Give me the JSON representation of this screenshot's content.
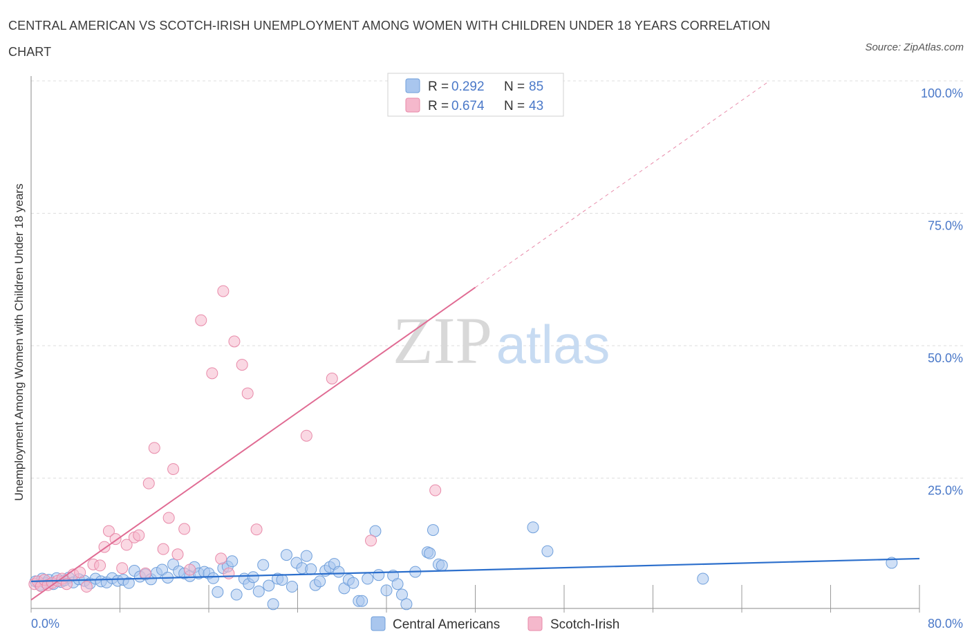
{
  "title": "CENTRAL AMERICAN VS SCOTCH-IRISH UNEMPLOYMENT AMONG WOMEN WITH CHILDREN UNDER 18 YEARS CORRELATION CHART",
  "source": "Source: ZipAtlas.com",
  "watermark": {
    "zip": "ZIP",
    "atlas": "atlas"
  },
  "colors": {
    "blue_fill": "#a9c6ee",
    "blue_stroke": "#6f9fdb",
    "blue_line": "#2c6fcc",
    "pink_fill": "#f5b8cc",
    "pink_stroke": "#e88aa9",
    "pink_line": "#e06b93",
    "tick_text": "#4a78c8",
    "grid": "#dddddd"
  },
  "legend": {
    "series": [
      {
        "r_label": "R = ",
        "r_value": "0.292",
        "n_label": "N = ",
        "n_value": "85"
      },
      {
        "r_label": "R = ",
        "r_value": "0.674",
        "n_label": "N = ",
        "n_value": "43"
      }
    ]
  },
  "chart_data": {
    "type": "scatter",
    "title": "CENTRAL AMERICAN VS SCOTCH-IRISH UNEMPLOYMENT AMONG WOMEN WITH CHILDREN UNDER 18 YEARS CORRELATION CHART",
    "xlabel": "",
    "ylabel": "Unemployment Among Women with Children Under 18 years",
    "xlim": [
      0,
      80
    ],
    "ylim": [
      0,
      100
    ],
    "x_tick_labels": {
      "min": "0.0%",
      "max": "80.0%"
    },
    "y_tick_labels": [
      "25.0%",
      "50.0%",
      "75.0%",
      "100.0%"
    ],
    "y_tick_values": [
      25,
      50,
      75,
      100
    ],
    "grid": true,
    "legend_position": "top-center",
    "series": [
      {
        "name": "Central Americans",
        "color": "#a9c6ee",
        "trend": {
          "x0": 0,
          "y0": 5.5,
          "x1": 80,
          "y1": 9.8
        },
        "points": [
          [
            0.4,
            5.5
          ],
          [
            0.8,
            4.8
          ],
          [
            1.0,
            6.0
          ],
          [
            1.3,
            5.2
          ],
          [
            1.6,
            5.8
          ],
          [
            2.0,
            5.0
          ],
          [
            2.3,
            6.1
          ],
          [
            2.7,
            5.4
          ],
          [
            3.0,
            5.7
          ],
          [
            3.4,
            6.2
          ],
          [
            3.8,
            5.3
          ],
          [
            4.3,
            5.9
          ],
          [
            4.8,
            5.6
          ],
          [
            5.3,
            5.1
          ],
          [
            5.8,
            6.0
          ],
          [
            6.3,
            5.5
          ],
          [
            6.8,
            5.3
          ],
          [
            7.3,
            6.1
          ],
          [
            7.8,
            5.6
          ],
          [
            8.3,
            5.8
          ],
          [
            8.8,
            5.2
          ],
          [
            9.3,
            7.5
          ],
          [
            9.8,
            6.4
          ],
          [
            10.3,
            6.8
          ],
          [
            10.8,
            5.9
          ],
          [
            11.3,
            7.1
          ],
          [
            11.8,
            7.7
          ],
          [
            12.3,
            6.2
          ],
          [
            12.8,
            8.7
          ],
          [
            13.3,
            7.4
          ],
          [
            13.8,
            7.0
          ],
          [
            14.3,
            6.5
          ],
          [
            14.7,
            8.2
          ],
          [
            15.1,
            7.0
          ],
          [
            15.6,
            7.3
          ],
          [
            16.0,
            7.0
          ],
          [
            16.4,
            6.1
          ],
          [
            16.8,
            3.5
          ],
          [
            17.3,
            8.0
          ],
          [
            17.7,
            8.3
          ],
          [
            18.1,
            9.3
          ],
          [
            18.5,
            3.0
          ],
          [
            19.2,
            6.0
          ],
          [
            19.6,
            5.0
          ],
          [
            20.0,
            6.3
          ],
          [
            20.5,
            3.6
          ],
          [
            20.9,
            8.6
          ],
          [
            21.4,
            4.7
          ],
          [
            21.8,
            1.2
          ],
          [
            22.2,
            6.0
          ],
          [
            22.6,
            5.8
          ],
          [
            23.0,
            10.5
          ],
          [
            23.5,
            4.5
          ],
          [
            23.9,
            9.0
          ],
          [
            24.4,
            8.0
          ],
          [
            24.8,
            10.3
          ],
          [
            25.2,
            7.8
          ],
          [
            25.6,
            4.8
          ],
          [
            26.0,
            5.5
          ],
          [
            26.5,
            7.5
          ],
          [
            26.9,
            8.2
          ],
          [
            27.3,
            8.8
          ],
          [
            27.7,
            7.3
          ],
          [
            28.2,
            4.2
          ],
          [
            28.6,
            5.8
          ],
          [
            29.0,
            5.2
          ],
          [
            29.5,
            1.8
          ],
          [
            29.8,
            1.8
          ],
          [
            30.3,
            6.0
          ],
          [
            31.0,
            15.0
          ],
          [
            31.3,
            6.7
          ],
          [
            32.0,
            3.8
          ],
          [
            32.6,
            6.6
          ],
          [
            33.0,
            5.0
          ],
          [
            33.4,
            3.0
          ],
          [
            33.8,
            1.2
          ],
          [
            34.6,
            7.3
          ],
          [
            35.7,
            11.0
          ],
          [
            35.9,
            10.8
          ],
          [
            36.2,
            15.2
          ],
          [
            36.7,
            8.7
          ],
          [
            37.0,
            8.5
          ],
          [
            45.2,
            15.7
          ],
          [
            46.5,
            11.2
          ],
          [
            60.5,
            6.0
          ],
          [
            77.5,
            9.0
          ]
        ]
      },
      {
        "name": "Scotch-Irish",
        "color": "#f5b8cc",
        "trend": {
          "x0": 0,
          "y0": 2.0,
          "x1": 40,
          "y1": 61.0,
          "dash_x1": 66.5,
          "dash_y1": 100
        },
        "points": [
          [
            0.3,
            5.0
          ],
          [
            0.6,
            5.5
          ],
          [
            0.9,
            4.6
          ],
          [
            1.2,
            5.8
          ],
          [
            1.5,
            4.8
          ],
          [
            1.9,
            5.2
          ],
          [
            2.4,
            5.6
          ],
          [
            2.8,
            6.0
          ],
          [
            3.2,
            5.0
          ],
          [
            3.8,
            6.8
          ],
          [
            4.4,
            7.2
          ],
          [
            5.0,
            4.5
          ],
          [
            5.6,
            8.7
          ],
          [
            6.2,
            8.5
          ],
          [
            6.6,
            12.0
          ],
          [
            7.0,
            15.0
          ],
          [
            7.6,
            13.5
          ],
          [
            8.2,
            8.0
          ],
          [
            8.6,
            12.4
          ],
          [
            9.3,
            13.8
          ],
          [
            9.7,
            14.2
          ],
          [
            10.3,
            7.0
          ],
          [
            10.6,
            24.0
          ],
          [
            11.1,
            30.7
          ],
          [
            11.9,
            11.6
          ],
          [
            12.4,
            17.5
          ],
          [
            12.8,
            26.7
          ],
          [
            13.2,
            10.6
          ],
          [
            13.8,
            15.4
          ],
          [
            14.3,
            7.7
          ],
          [
            15.3,
            54.8
          ],
          [
            16.3,
            44.8
          ],
          [
            17.1,
            9.8
          ],
          [
            17.3,
            60.3
          ],
          [
            17.8,
            7.0
          ],
          [
            18.3,
            50.8
          ],
          [
            19.0,
            46.4
          ],
          [
            19.5,
            41.0
          ],
          [
            20.3,
            15.3
          ],
          [
            24.8,
            33.0
          ],
          [
            27.1,
            43.8
          ],
          [
            30.6,
            13.2
          ],
          [
            36.4,
            22.7
          ]
        ]
      }
    ]
  },
  "bottom_legend": [
    {
      "label": "Central Americans"
    },
    {
      "label": "Scotch-Irish"
    }
  ]
}
